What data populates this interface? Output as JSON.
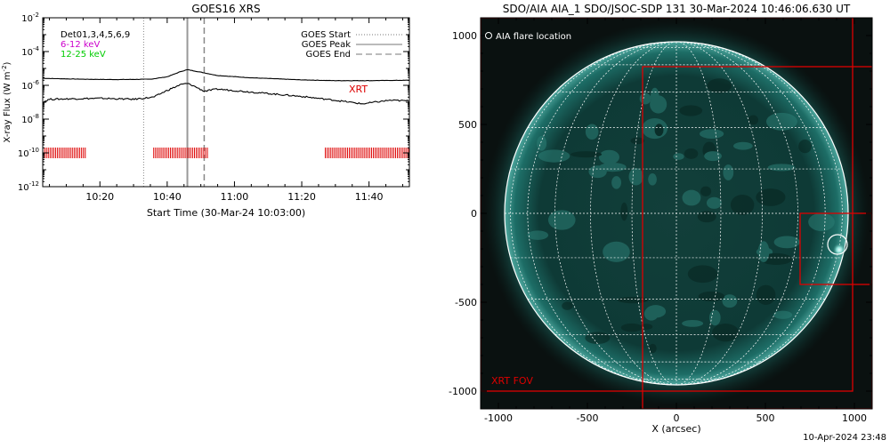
{
  "chart_data": [
    {
      "type": "line",
      "title": "GOES16 XRS",
      "xlabel": "Start Time (30-Mar-24 10:03:00)",
      "ylabel": "X-ray Flux (W m",
      "ylabel_units": "-2",
      "ylabel_close": ")",
      "y_scale": "log",
      "xlim": [
        "10:03",
        "11:52"
      ],
      "ylim": [
        1e-12,
        0.01
      ],
      "x_ticks": [
        "10:20",
        "10:40",
        "11:00",
        "11:20",
        "11:40"
      ],
      "y_ticks": [
        {
          "value": 0.01,
          "base": "10",
          "exp": "-2"
        },
        {
          "value": 0.0001,
          "base": "10",
          "exp": "-4"
        },
        {
          "value": 1e-06,
          "base": "10",
          "exp": "-6"
        },
        {
          "value": 1e-08,
          "base": "10",
          "exp": "-8"
        },
        {
          "value": 1e-10,
          "base": "10",
          "exp": "-10"
        },
        {
          "value": 1e-12,
          "base": "10",
          "exp": "-12"
        }
      ],
      "legend_left": {
        "detectors": "Det01,3,4,5,6,9",
        "bands": [
          {
            "label": "6-12 keV",
            "color": "#cc00cc"
          },
          {
            "label": "12-25 keV",
            "color": "#00cc00"
          }
        ]
      },
      "legend_right": [
        {
          "label": "GOES Start",
          "style": "dotted",
          "time": "10:33"
        },
        {
          "label": "GOES Peak",
          "style": "solid",
          "time": "10:46"
        },
        {
          "label": "GOES End",
          "style": "dashed",
          "time": "10:51"
        }
      ],
      "annotation": {
        "label": "XRT",
        "color": "#dd0000",
        "time": "11:34",
        "value": 6e-07
      },
      "series": [
        {
          "color": "#000000",
          "x": [
            "10:03",
            "10:15",
            "10:25",
            "10:35",
            "10:40",
            "10:44",
            "10:46",
            "10:50",
            "10:55",
            "11:05",
            "11:20",
            "11:30",
            "11:40",
            "11:52"
          ],
          "y": [
            2.6e-06,
            2.3e-06,
            2.2e-06,
            2.3e-06,
            3.2e-06,
            6.5e-06,
            8.5e-06,
            6e-06,
            3.8e-06,
            2.8e-06,
            2.1e-06,
            1.9e-06,
            1.9e-06,
            2e-06
          ]
        },
        {
          "color": "#000000",
          "x": [
            "10:03",
            "10:05",
            "10:12",
            "10:20",
            "10:30",
            "10:36",
            "10:40",
            "10:44",
            "10:46",
            "10:48",
            "10:51",
            "10:55",
            "11:05",
            "11:20",
            "11:30",
            "11:38",
            "11:46",
            "11:52"
          ],
          "y": [
            1e-07,
            1.5e-07,
            1.6e-07,
            1.7e-07,
            1.5e-07,
            2e-07,
            5e-07,
            1.1e-06,
            1.3e-06,
            9e-07,
            4.5e-07,
            6e-07,
            4e-07,
            2.2e-07,
            1.3e-07,
            8e-08,
            1.3e-07,
            1.2e-07
          ]
        }
      ],
      "xrt_obs_times": [
        {
          "start": "10:03",
          "end": "10:16"
        },
        {
          "start": "10:36",
          "end": "10:52"
        },
        {
          "start": "11:27",
          "end": "11:52"
        }
      ],
      "xrt_obs_level": 1e-10,
      "xrt_obs_color": "#dd0000"
    },
    {
      "type": "image",
      "title": "SDO/AIA AIA_1 SDO/JSOC-SDP 131 30-Mar-2024 10:46:06.630 UT",
      "xlabel": "X (arcsec)",
      "xlim": [
        -1100,
        1100
      ],
      "ylim": [
        -1100,
        1100
      ],
      "x_ticks": [
        "-1000",
        "-500",
        "0",
        "500",
        "1000"
      ],
      "x_tick_values": [
        -1000,
        -500,
        0,
        500,
        1000
      ],
      "y_ticks": [
        "1000",
        "500",
        "0",
        "-500",
        "-1000"
      ],
      "y_tick_values": [
        1000,
        500,
        0,
        -500,
        -1000
      ],
      "solar_radius_arcsec": 965,
      "disk_color": "#0e3a36",
      "grid_color": "#ffffff",
      "legend": "AIA flare location",
      "flare": {
        "x": 905,
        "y": -175,
        "radius": 55
      },
      "fov_label": "XRT FOV",
      "fov_color": "#dd0000",
      "fov_boxes": [
        {
          "x0": -1100,
          "y0": -1000,
          "x1": 990,
          "y1": 1100
        },
        {
          "x0": -190,
          "y0": -1100,
          "x1": 1100,
          "y1": 825
        },
        {
          "x0": 695,
          "y0": -400,
          "x1": 1100,
          "y1": 0
        }
      ]
    }
  ],
  "footer": {
    "timestamp": "10-Apr-2024 23:48"
  }
}
